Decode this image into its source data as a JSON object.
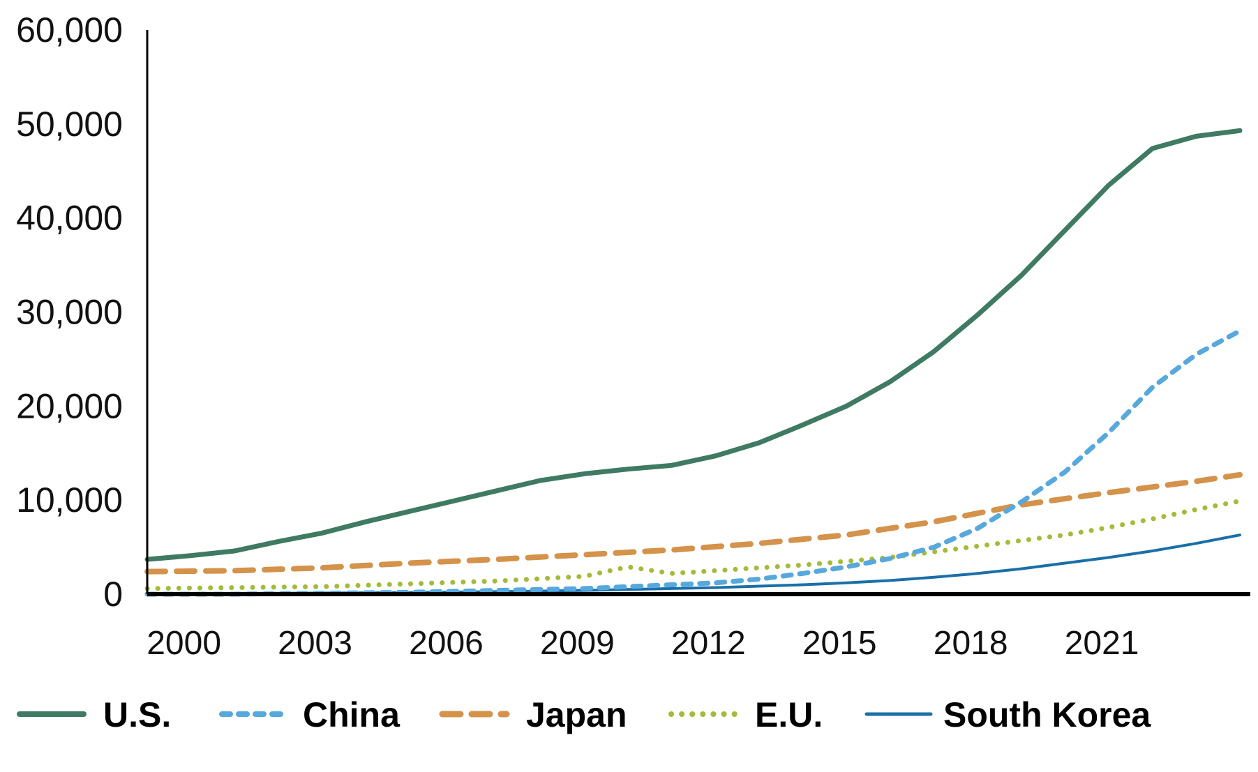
{
  "chart_data": {
    "type": "line",
    "title": "",
    "xlabel": "",
    "ylabel": "",
    "ylim": [
      0,
      60000
    ],
    "grid": false,
    "legend_position": "bottom",
    "y_ticks": [
      "0",
      "10,000",
      "20,000",
      "30,000",
      "40,000",
      "50,000",
      "60,000"
    ],
    "y_tick_values": [
      0,
      10000,
      20000,
      30000,
      40000,
      50000,
      60000
    ],
    "x_tick_labels": [
      "2000",
      "2003",
      "2006",
      "2009",
      "2012",
      "2015",
      "2018",
      "2021"
    ],
    "x_tick_values": [
      2000,
      2003,
      2006,
      2009,
      2012,
      2015,
      2018,
      2021
    ],
    "x": [
      1999,
      2000,
      2001,
      2002,
      2003,
      2004,
      2005,
      2006,
      2007,
      2008,
      2009,
      2010,
      2011,
      2012,
      2013,
      2014,
      2015,
      2016,
      2017,
      2018,
      2019,
      2020,
      2021,
      2022,
      2023,
      2024
    ],
    "series": [
      {
        "name": "U.S.",
        "color": "#3f7a62",
        "style": "solid",
        "width": 7,
        "values": [
          3700,
          4100,
          4600,
          5600,
          6500,
          7700,
          8800,
          9900,
          11000,
          12100,
          12800,
          13300,
          13700,
          14700,
          16100,
          18000,
          20000,
          22600,
          25800,
          29700,
          33900,
          38700,
          43500,
          47400,
          48700,
          49300
        ]
      },
      {
        "name": "China",
        "color": "#56a8dd",
        "style": "dashed-short",
        "width": 7,
        "values": [
          0,
          0,
          0,
          50,
          100,
          150,
          200,
          300,
          400,
          500,
          600,
          800,
          1000,
          1200,
          1600,
          2200,
          2900,
          3800,
          5000,
          7000,
          9800,
          13000,
          17200,
          22000,
          25500,
          28000
        ]
      },
      {
        "name": "Japan",
        "color": "#d4924a",
        "style": "dashed-long",
        "width": 8,
        "values": [
          2400,
          2450,
          2500,
          2650,
          2800,
          3050,
          3300,
          3500,
          3700,
          3950,
          4200,
          4450,
          4700,
          5050,
          5400,
          5850,
          6300,
          7000,
          7700,
          8600,
          9500,
          10150,
          10800,
          11400,
          12000,
          12700
        ]
      },
      {
        "name": "E.U.",
        "color": "#a4bb3a",
        "style": "dotted",
        "width": 7,
        "values": [
          600,
          650,
          700,
          750,
          800,
          950,
          1100,
          1250,
          1400,
          1650,
          1900,
          2900,
          2200,
          2500,
          2800,
          3100,
          3500,
          3900,
          4500,
          5100,
          5700,
          6300,
          7100,
          8000,
          9000,
          9900
        ]
      },
      {
        "name": "South Korea",
        "color": "#1a6fa8",
        "style": "solid",
        "width": 4,
        "values": [
          50,
          60,
          80,
          100,
          120,
          150,
          180,
          220,
          270,
          330,
          400,
          500,
          600,
          700,
          850,
          1000,
          1200,
          1450,
          1800,
          2200,
          2700,
          3300,
          3900,
          4600,
          5400,
          6300
        ]
      }
    ]
  }
}
